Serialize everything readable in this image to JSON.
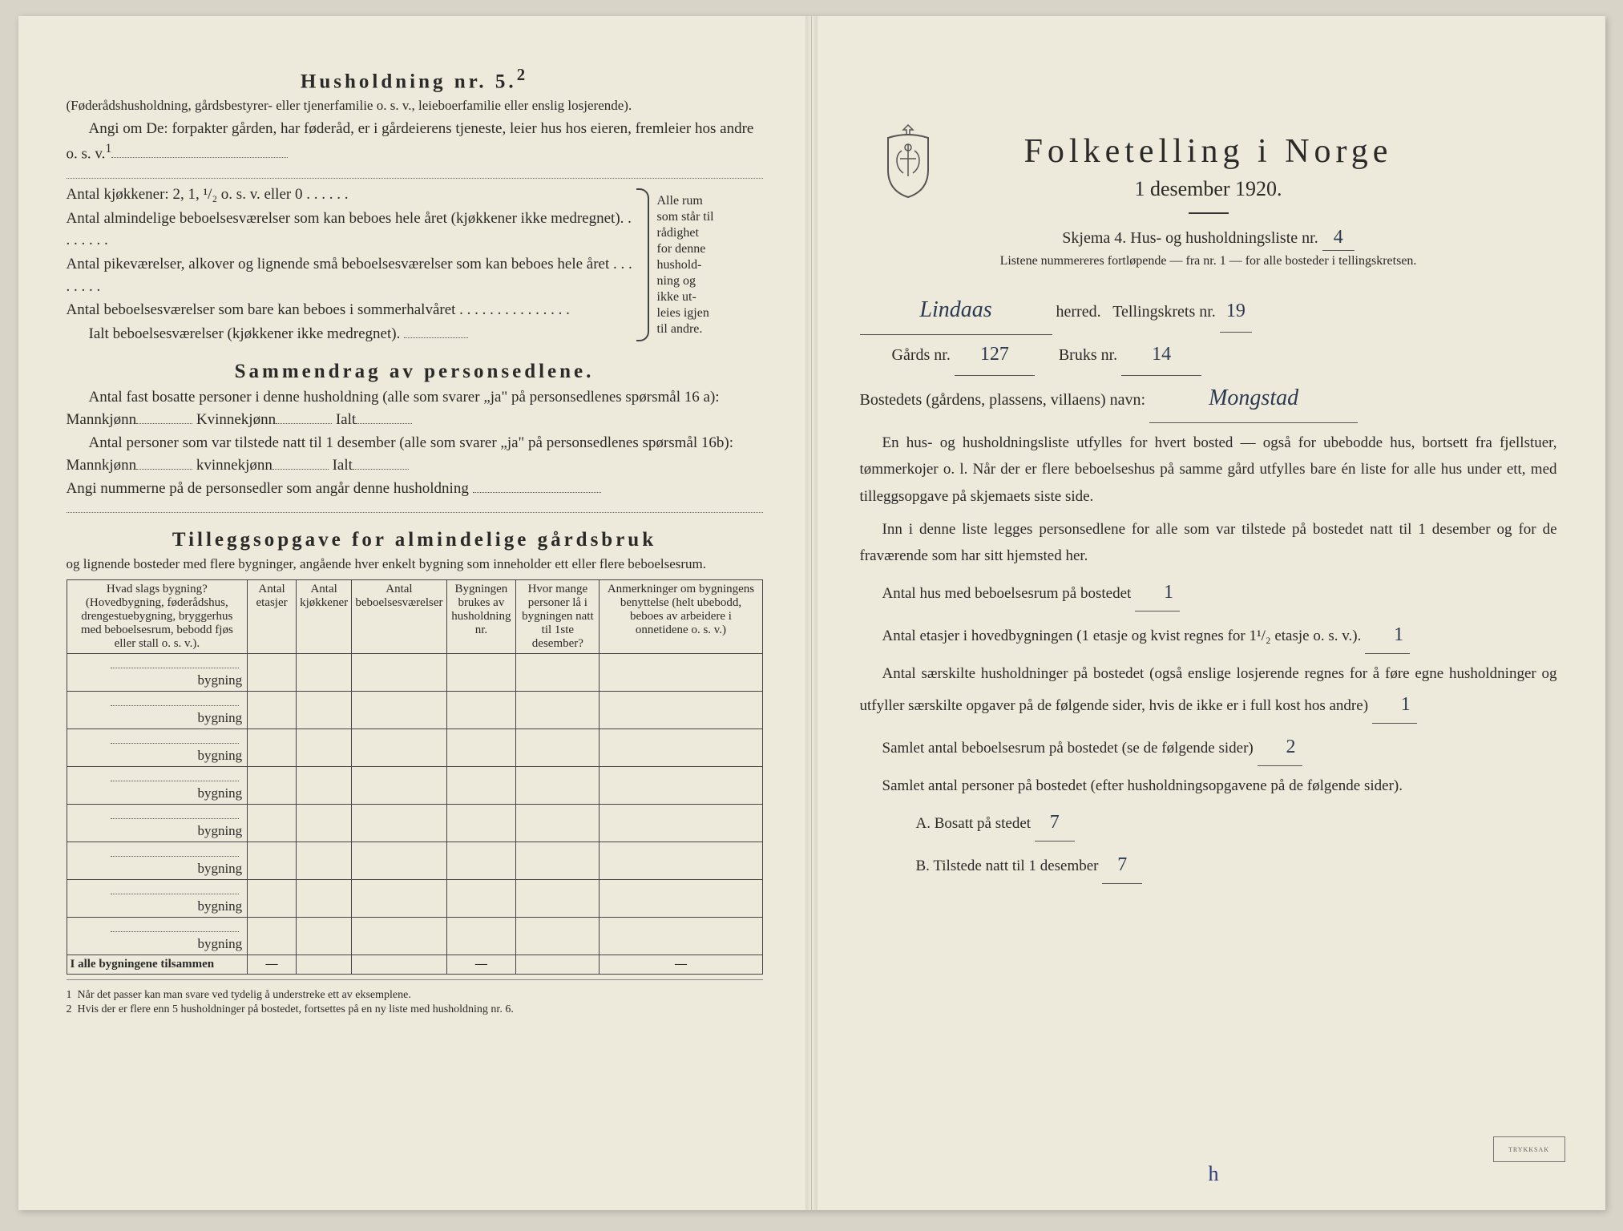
{
  "left": {
    "h5_title": "Husholdning nr. 5.",
    "h5_sup": "2",
    "h5_par": "(Føderådshusholdning, gårdsbestyrer- eller tjenerfamilie o. s. v., leieboerfamilie eller enslig losjerende).",
    "angi": "Angi om De: forpakter gården, har føderåd, er i gårdeierens tjeneste, leier hus hos eieren, fremleier hos andre o. s. v.",
    "angi_sup": "1",
    "kj_line": "Antal kjøkkener: 2, 1, ¹/₂ o. s. v. eller 0 . . . . . .",
    "b1": "Antal almindelige beboelsesværelser som kan beboes hele året (kjøkkener ikke medregnet). . . . . . . .",
    "b2": "Antal pikeværelser, alkover og lignende små beboelsesværelser som kan beboes hele året . . . . . . . .",
    "b3": "Antal beboelsesværelser som bare kan beboes i sommerhalvåret . . . . . . . . . . . . . . .",
    "b_total": "Ialt beboelsesværelser (kjøkkener ikke medregnet).",
    "brace_text": [
      "Alle rum",
      "som står til",
      "rådighet",
      "for denne",
      "hushold-",
      "ning og",
      "ikke ut-",
      "leies igjen",
      "til andre."
    ],
    "sammen_title": "Sammendrag av personsedlene.",
    "sam_p1a": "Antal fast bosatte personer i denne husholdning (alle som svarer „ja\" på personsedlenes spørsmål 16 a): Mannkjønn",
    "sam_p1b": "Kvinnekjønn",
    "sam_p1c": "Ialt",
    "sam_p2a": "Antal personer som var tilstede natt til 1 desember (alle som svarer „ja\" på personsedlenes spørsmål 16b): Mannkjønn",
    "sam_p2b": "kvinnekjønn",
    "sam_p2c": "Ialt",
    "sam_p3": "Angi nummerne på de personsedler som angår denne husholdning",
    "tillegg_title": "Tilleggsopgave for almindelige gårdsbruk",
    "tillegg_sub": "og lignende bosteder med flere bygninger, angående hver enkelt bygning som inneholder ett eller flere beboelsesrum.",
    "tbl": {
      "cols": [
        "Hvad slags bygning?\n(Hovedbygning, føderådshus, drengestuebygning, bryggerhus med beboelsesrum, bebodd fjøs eller stall o. s. v.).",
        "Antal etasjer",
        "Antal kjøkkener",
        "Antal beboelsesværelser",
        "Bygningen brukes av husholdning nr.",
        "Hvor mange personer lå i bygningen natt til 1ste desember?",
        "Anmerkninger om bygningens benyttelse (helt ubebodd, beboes av arbeidere i onnetidene o. s. v.)"
      ],
      "row_label": "bygning",
      "rows": 8,
      "footer": "I alle bygningene tilsammen",
      "dashes": [
        "—",
        "",
        "",
        "—",
        "",
        "—",
        "—"
      ]
    },
    "fn1": "Når det passer kan man svare ved tydelig å understreke ett av eksemplene.",
    "fn2": "Hvis der er flere enn 5 husholdninger på bostedet, fortsettes på en ny liste med husholdning nr. 6."
  },
  "right": {
    "title": "Folketelling i Norge",
    "subtitle": "1 desember 1920.",
    "skjema_a": "Skjema 4.  Hus- og husholdningsliste nr.",
    "skjema_nr": "4",
    "listene": "Listene nummereres fortløpende — fra nr. 1 — for alle bosteder i tellingskretsen.",
    "herred_val": "Lindaas",
    "herred_lbl": "herred.",
    "krets_lbl": "Tellingskrets nr.",
    "krets_val": "19",
    "gard_lbl": "Gårds nr.",
    "gard_val": "127",
    "bruk_lbl": "Bruks nr.",
    "bruk_val": "14",
    "bost_lbl": "Bostedets (gårdens, plassens, villaens) navn:",
    "bost_val": "Mongstad",
    "p1": "En hus- og husholdningsliste utfylles for hvert bosted — også for ubebodde hus, bortsett fra fjellstuer, tømmerkojer o. l.  Når der er flere beboelseshus på samme gård utfylles bare én liste for alle hus under ett, med tilleggsopgave på skjemaets siste side.",
    "p2": "Inn i denne liste legges personsedlene for alle som var tilstede på bostedet natt til 1 desember og for de fraværende som har sitt hjemsted her.",
    "q1": "Antal hus med beboelsesrum på bostedet",
    "q1_val": "1",
    "q2a": "Antal etasjer i hovedbygningen (1 etasje og kvist regnes for 1¹/₂ etasje o. s. v.).",
    "q2_val": "1",
    "q3": "Antal særskilte husholdninger på bostedet (også enslige losjerende regnes for å føre egne husholdninger og utfyller særskilte opgaver på de følgende sider, hvis de ikke er i full kost hos andre)",
    "q3_val": "1",
    "q4": "Samlet antal beboelsesrum på bostedet (se de følgende sider)",
    "q4_val": "2",
    "q5": "Samlet antal personer på bostedet (efter husholdningsopgavene på de følgende sider).",
    "qA": "A.  Bosatt på stedet",
    "qA_val": "7",
    "qB": "B.  Tilstede natt til 1 desember",
    "qB_val": "7",
    "stamp": "TRYKKSAK"
  },
  "colors": {
    "paper": "#ede9db",
    "ink": "#2a2a28",
    "hand": "#2b3a52"
  }
}
